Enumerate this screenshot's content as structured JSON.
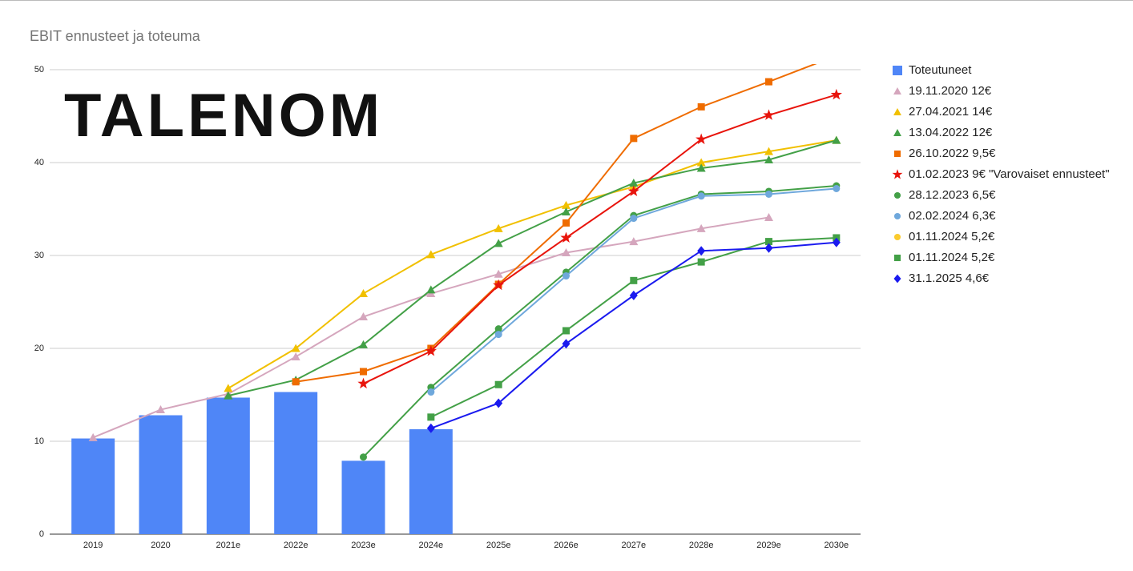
{
  "chart_data": {
    "type": "combo",
    "title": "EBIT ennusteet ja toteuma",
    "logo": "TALENOM",
    "categories": [
      "2019",
      "2020",
      "2021e",
      "2022e",
      "2023e",
      "2024e",
      "2025e",
      "2026e",
      "2027e",
      "2028e",
      "2029e",
      "2030e"
    ],
    "ylim": [
      0,
      50
    ],
    "yticks": [
      0,
      10,
      20,
      30,
      40,
      50
    ],
    "grid": true,
    "legend": "right",
    "series": [
      {
        "name": "Toteutuneet",
        "type": "bar",
        "marker": "square",
        "color": "#4f86f7",
        "values": [
          10.3,
          12.8,
          14.7,
          15.3,
          7.9,
          11.3,
          null,
          null,
          null,
          null,
          null,
          null
        ]
      },
      {
        "name": "19.11.2020 12€",
        "type": "line",
        "marker": "triangle",
        "color": "#d5a6bd",
        "values": [
          10.4,
          13.4,
          15.1,
          19.1,
          23.4,
          25.9,
          28.0,
          30.3,
          31.5,
          32.9,
          34.1,
          null
        ]
      },
      {
        "name": "27.04.2021 14€",
        "type": "line",
        "marker": "triangle",
        "color": "#f1c000",
        "values": [
          null,
          null,
          15.7,
          20.0,
          25.9,
          30.1,
          32.9,
          35.4,
          37.4,
          40.0,
          41.2,
          42.4
        ]
      },
      {
        "name": "13.04.2022 12€",
        "type": "line",
        "marker": "triangle",
        "color": "#43a047",
        "values": [
          null,
          null,
          14.9,
          16.6,
          20.4,
          26.3,
          31.3,
          34.7,
          37.8,
          39.4,
          40.3,
          42.4
        ]
      },
      {
        "name": "26.10.2022 9,5€",
        "type": "line",
        "marker": "square",
        "color": "#ef6c00",
        "values": [
          null,
          null,
          null,
          16.4,
          17.5,
          20.0,
          26.9,
          33.5,
          42.6,
          46.0,
          48.7,
          51.5
        ]
      },
      {
        "name": "01.02.2023 9€ \"Varovaiset ennusteet\"",
        "type": "line",
        "marker": "star",
        "color": "#e8140c",
        "values": [
          null,
          null,
          null,
          null,
          16.2,
          19.7,
          26.8,
          31.9,
          36.9,
          42.5,
          45.1,
          47.3
        ]
      },
      {
        "name": "28.12.2023 6,5€",
        "type": "line",
        "marker": "circle",
        "color": "#43a047",
        "values": [
          null,
          null,
          null,
          null,
          8.3,
          15.8,
          22.1,
          28.2,
          34.3,
          36.6,
          36.9,
          37.5
        ]
      },
      {
        "name": "02.02.2024 6,3€",
        "type": "line",
        "marker": "circle",
        "color": "#6fa8dc",
        "values": [
          null,
          null,
          null,
          null,
          null,
          15.3,
          21.5,
          27.8,
          34.0,
          36.4,
          36.6,
          37.2
        ]
      },
      {
        "name": "01.11.2024 5,2€",
        "type": "line",
        "marker": "circle",
        "color": "#fbcb2d",
        "values": [
          null,
          null,
          null,
          null,
          null,
          null,
          null,
          null,
          null,
          null,
          null,
          null
        ]
      },
      {
        "name": "01.11.2024 5,2€",
        "type": "line",
        "marker": "square",
        "color": "#43a047",
        "values": [
          null,
          null,
          null,
          null,
          null,
          12.6,
          16.1,
          21.9,
          27.3,
          29.3,
          31.5,
          31.9
        ]
      },
      {
        "name": "31.1.2025 4,6€",
        "type": "line",
        "marker": "diamond",
        "color": "#1a1aef",
        "values": [
          null,
          null,
          null,
          null,
          null,
          11.4,
          14.1,
          20.5,
          25.7,
          30.5,
          30.8,
          31.4
        ]
      }
    ]
  }
}
